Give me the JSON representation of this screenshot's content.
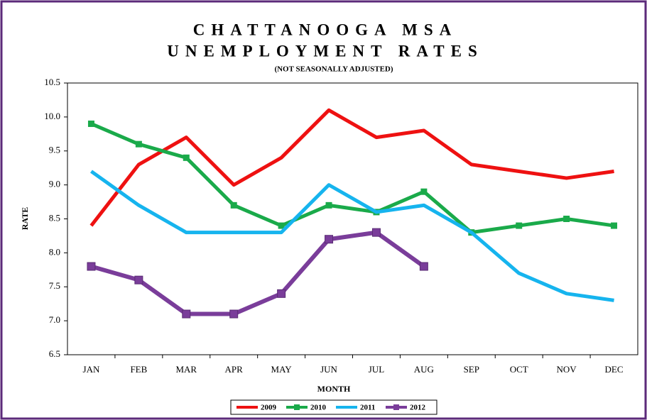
{
  "chart_data": {
    "type": "line",
    "title": [
      "CHATTANOOGA MSA",
      "UNEMPLOYMENT RATES"
    ],
    "subtitle": "(NOT SEASONALLY ADJUSTED)",
    "x_label": "MONTH",
    "y_label": "RATE",
    "categories": [
      "JAN",
      "FEB",
      "MAR",
      "APR",
      "MAY",
      "JUN",
      "JUL",
      "AUG",
      "SEP",
      "OCT",
      "NOV",
      "DEC"
    ],
    "ylim": [
      6.5,
      10.5
    ],
    "yticks": [
      6.5,
      {
        "value": 7,
        "label": "7.0"
      },
      7.5,
      {
        "value": 8,
        "label": "8.0"
      },
      8.5,
      {
        "value": 9,
        "label": "9.0"
      },
      9.5,
      {
        "value": 10,
        "label": "10.0"
      },
      10.5
    ],
    "legend": "bottom",
    "series": [
      {
        "name": "2009",
        "color": "#ee1111",
        "marker": "none",
        "values": [
          8.4,
          9.3,
          9.7,
          9.0,
          9.4,
          10.1,
          9.7,
          9.8,
          9.3,
          9.2,
          9.1,
          9.2
        ]
      },
      {
        "name": "2010",
        "color": "#1aaa4a",
        "marker": "square",
        "values": [
          9.9,
          9.6,
          9.4,
          8.7,
          8.4,
          8.7,
          8.6,
          8.9,
          8.3,
          8.4,
          8.5,
          8.4
        ]
      },
      {
        "name": "2011",
        "color": "#16b4ee",
        "marker": "none",
        "values": [
          9.2,
          8.7,
          8.3,
          8.3,
          8.3,
          9.0,
          8.6,
          8.7,
          8.3,
          7.7,
          7.4,
          7.3
        ]
      },
      {
        "name": "2012",
        "color": "#7a3d9a",
        "marker": "square",
        "values": [
          7.8,
          7.6,
          7.1,
          7.1,
          7.4,
          8.2,
          8.3,
          7.8,
          null,
          null,
          null,
          null
        ]
      }
    ]
  }
}
